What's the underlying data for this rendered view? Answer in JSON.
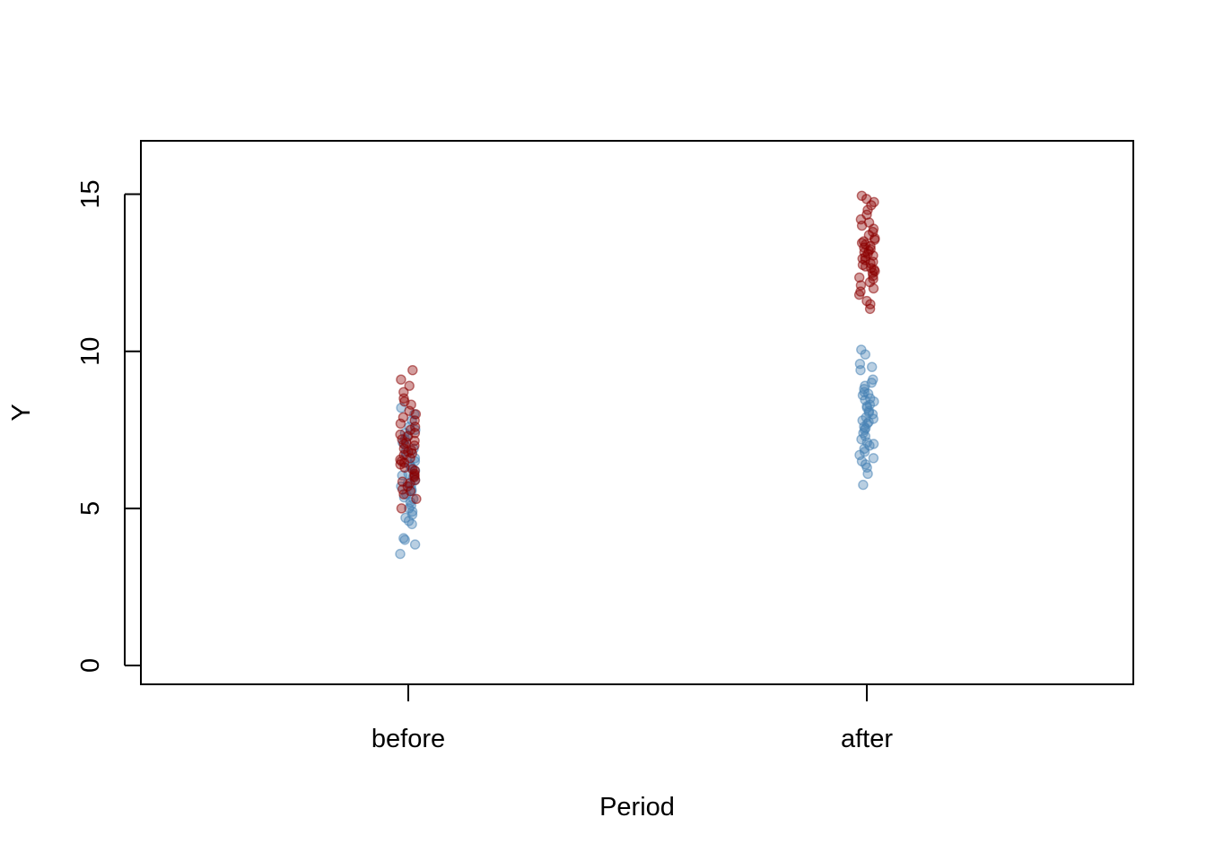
{
  "chart_data": {
    "type": "scatter",
    "title": "",
    "xlabel": "Period",
    "ylabel": "Y",
    "categories": [
      "before",
      "after"
    ],
    "ylim": [
      -0.6,
      16.7
    ],
    "yticks": [
      0,
      5,
      10,
      15
    ],
    "grid": false,
    "series": [
      {
        "color": "#4682B4",
        "points": {
          "before": [
            3.55,
            3.85,
            4.0,
            4.05,
            4.5,
            4.6,
            4.7,
            4.8,
            4.9,
            5.0,
            5.1,
            5.2,
            5.3,
            5.35,
            5.45,
            5.55,
            5.6,
            5.7,
            5.75,
            5.8,
            5.9,
            6.0,
            6.05,
            6.1,
            6.2,
            6.3,
            6.35,
            6.4,
            6.5,
            6.6,
            6.7,
            6.8,
            6.9,
            7.0,
            7.1,
            7.2,
            7.3,
            7.4,
            7.5,
            7.6,
            7.8,
            8.0,
            8.2
          ],
          "after": [
            5.75,
            6.1,
            6.3,
            6.4,
            6.5,
            6.6,
            6.7,
            6.8,
            6.9,
            7.0,
            7.05,
            7.1,
            7.2,
            7.3,
            7.4,
            7.5,
            7.55,
            7.6,
            7.7,
            7.75,
            7.8,
            7.85,
            7.9,
            8.0,
            8.05,
            8.1,
            8.2,
            8.25,
            8.3,
            8.4,
            8.45,
            8.5,
            8.6,
            8.65,
            8.7,
            8.8,
            8.9,
            9.0,
            9.1,
            9.4,
            9.5,
            9.6,
            9.9,
            10.05
          ]
        }
      },
      {
        "color": "#8B0000",
        "points": {
          "before": [
            5.0,
            5.3,
            5.45,
            5.55,
            5.6,
            5.7,
            5.8,
            5.85,
            5.9,
            6.0,
            6.05,
            6.1,
            6.2,
            6.25,
            6.3,
            6.4,
            6.45,
            6.5,
            6.55,
            6.6,
            6.7,
            6.75,
            6.8,
            6.85,
            6.9,
            7.0,
            7.05,
            7.1,
            7.15,
            7.2,
            7.3,
            7.35,
            7.4,
            7.5,
            7.6,
            7.7,
            7.8,
            7.9,
            8.0,
            8.1,
            8.3,
            8.4,
            8.5,
            8.7,
            8.9,
            9.1,
            9.4
          ],
          "after": [
            11.35,
            11.5,
            11.6,
            11.8,
            11.9,
            12.0,
            12.1,
            12.2,
            12.3,
            12.35,
            12.4,
            12.5,
            12.55,
            12.6,
            12.65,
            12.7,
            12.75,
            12.8,
            12.85,
            12.9,
            12.95,
            13.0,
            13.05,
            13.1,
            13.15,
            13.2,
            13.25,
            13.3,
            13.35,
            13.4,
            13.45,
            13.5,
            13.55,
            13.6,
            13.7,
            13.8,
            13.9,
            14.0,
            14.1,
            14.2,
            14.35,
            14.5,
            14.65,
            14.75,
            14.85,
            14.95
          ]
        }
      }
    ]
  }
}
